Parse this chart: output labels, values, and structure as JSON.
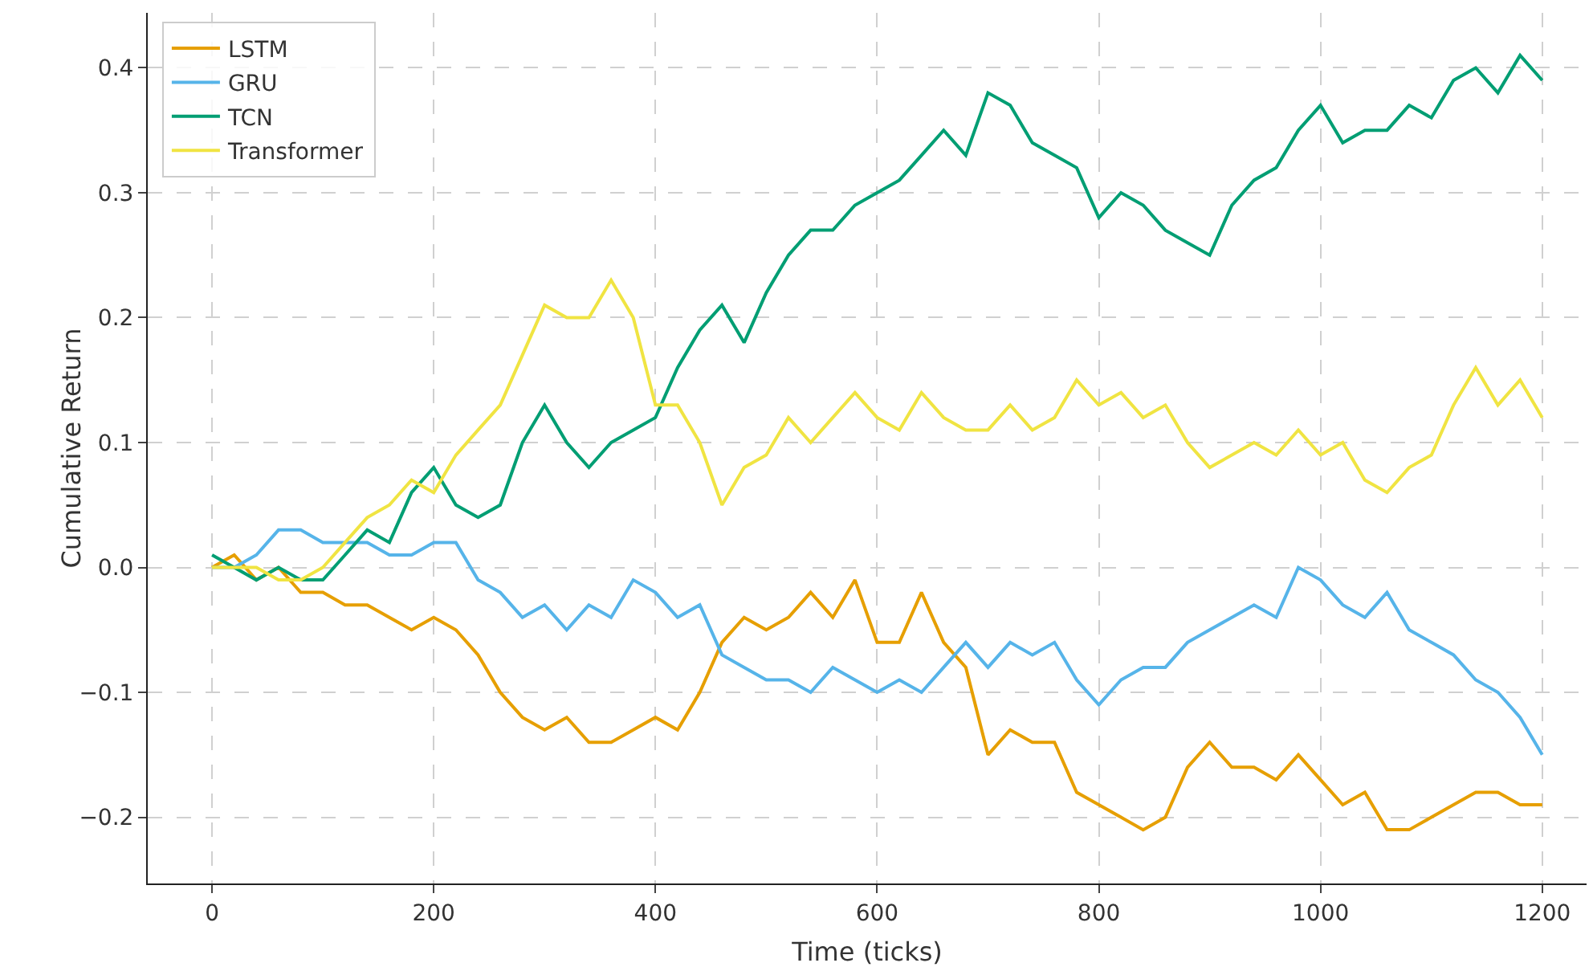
{
  "chart_data": {
    "type": "line",
    "xlabel": "Time (ticks)",
    "ylabel": "Cumulative Return",
    "x": [
      0,
      20,
      40,
      60,
      80,
      100,
      120,
      140,
      160,
      180,
      200,
      220,
      240,
      260,
      280,
      300,
      320,
      340,
      360,
      380,
      400,
      420,
      440,
      460,
      480,
      500,
      520,
      540,
      560,
      580,
      600,
      620,
      640,
      660,
      680,
      700,
      720,
      740,
      760,
      780,
      800,
      820,
      840,
      860,
      880,
      900,
      920,
      940,
      960,
      980,
      1000,
      1020,
      1040,
      1060,
      1080,
      1100,
      1120,
      1140,
      1160,
      1180,
      1200
    ],
    "series": [
      {
        "name": "LSTM",
        "color": "#e69f00",
        "values": [
          0,
          0.01,
          -0.01,
          0,
          -0.02,
          -0.02,
          -0.03,
          -0.03,
          -0.04,
          -0.05,
          -0.04,
          -0.05,
          -0.07,
          -0.1,
          -0.12,
          -0.13,
          -0.12,
          -0.14,
          -0.14,
          -0.13,
          -0.12,
          -0.13,
          -0.1,
          -0.06,
          -0.04,
          -0.05,
          -0.04,
          -0.02,
          -0.04,
          -0.01,
          -0.06,
          -0.06,
          -0.02,
          -0.06,
          -0.08,
          -0.15,
          -0.13,
          -0.14,
          -0.14,
          -0.18,
          -0.19,
          -0.2,
          -0.21,
          -0.2,
          -0.16,
          -0.14,
          -0.16,
          -0.16,
          -0.17,
          -0.15,
          -0.17,
          -0.19,
          -0.18,
          -0.21,
          -0.21,
          -0.2,
          -0.19,
          -0.18,
          -0.18,
          -0.19,
          -0.19
        ]
      },
      {
        "name": "GRU",
        "color": "#56b4e9",
        "values": [
          0,
          0,
          0.01,
          0.03,
          0.03,
          0.02,
          0.02,
          0.02,
          0.01,
          0.01,
          0.02,
          0.02,
          -0.01,
          -0.02,
          -0.04,
          -0.03,
          -0.05,
          -0.03,
          -0.04,
          -0.01,
          -0.02,
          -0.04,
          -0.03,
          -0.07,
          -0.08,
          -0.09,
          -0.09,
          -0.1,
          -0.08,
          -0.09,
          -0.1,
          -0.09,
          -0.1,
          -0.08,
          -0.06,
          -0.08,
          -0.06,
          -0.07,
          -0.06,
          -0.09,
          -0.11,
          -0.09,
          -0.08,
          -0.08,
          -0.06,
          -0.05,
          -0.04,
          -0.03,
          -0.04,
          0,
          -0.01,
          -0.03,
          -0.04,
          -0.02,
          -0.05,
          -0.06,
          -0.07,
          -0.09,
          -0.1,
          -0.12,
          -0.15
        ]
      },
      {
        "name": "TCN",
        "color": "#009e73",
        "values": [
          0.01,
          0,
          -0.01,
          0,
          -0.01,
          -0.01,
          0.01,
          0.03,
          0.02,
          0.06,
          0.08,
          0.05,
          0.04,
          0.05,
          0.1,
          0.13,
          0.1,
          0.08,
          0.1,
          0.11,
          0.12,
          0.16,
          0.19,
          0.21,
          0.18,
          0.22,
          0.25,
          0.27,
          0.27,
          0.29,
          0.3,
          0.31,
          0.33,
          0.35,
          0.33,
          0.38,
          0.37,
          0.34,
          0.33,
          0.32,
          0.28,
          0.3,
          0.29,
          0.27,
          0.26,
          0.25,
          0.29,
          0.31,
          0.32,
          0.35,
          0.37,
          0.34,
          0.35,
          0.35,
          0.37,
          0.36,
          0.39,
          0.4,
          0.38,
          0.41,
          0.39
        ]
      },
      {
        "name": "Transformer",
        "color": "#f0e442",
        "values": [
          0,
          0,
          0,
          -0.01,
          -0.01,
          0,
          0.02,
          0.04,
          0.05,
          0.07,
          0.06,
          0.09,
          0.11,
          0.13,
          0.17,
          0.21,
          0.2,
          0.2,
          0.23,
          0.2,
          0.13,
          0.13,
          0.1,
          0.05,
          0.08,
          0.09,
          0.12,
          0.1,
          0.12,
          0.14,
          0.12,
          0.11,
          0.14,
          0.12,
          0.11,
          0.11,
          0.13,
          0.11,
          0.12,
          0.15,
          0.13,
          0.14,
          0.12,
          0.13,
          0.1,
          0.08,
          0.09,
          0.1,
          0.09,
          0.11,
          0.09,
          0.1,
          0.07,
          0.06,
          0.08,
          0.09,
          0.13,
          0.16,
          0.13,
          0.15,
          0.12
        ]
      }
    ],
    "xlim": [
      -58,
      1240
    ],
    "ylim": [
      -0.253,
      0.444
    ],
    "xticks": [
      0,
      200,
      400,
      600,
      800,
      1000,
      1200
    ],
    "yticks": [
      {
        "value": -0.2,
        "label": "−0.2"
      },
      {
        "value": -0.1,
        "label": "−0.1"
      },
      {
        "value": 0,
        "label": "0.0"
      },
      {
        "value": 0.1,
        "label": "0.1"
      },
      {
        "value": 0.2,
        "label": "0.2"
      },
      {
        "value": 0.3,
        "label": "0.3"
      },
      {
        "value": 0.4,
        "label": "0.4"
      }
    ],
    "grid": true,
    "legend": "top left",
    "line_style": "solid",
    "marker": "none"
  }
}
